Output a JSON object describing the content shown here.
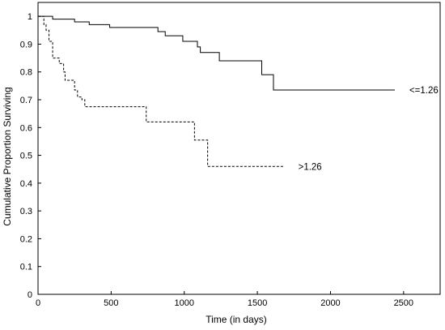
{
  "chart_data": {
    "type": "line",
    "subtype": "step",
    "xlabel": "Time (in days)",
    "ylabel": "Cumulative Proportion Surviving",
    "xlim": [
      0,
      2750
    ],
    "ylim": [
      0,
      1.05
    ],
    "xticks": [
      0,
      500,
      1000,
      1500,
      2000,
      2500
    ],
    "xtick_labels": [
      "0",
      "500",
      "1000",
      "1500",
      "2000",
      "2500"
    ],
    "yticks": [
      0,
      0.1,
      0.2,
      0.3,
      0.4,
      0.5,
      0.6,
      0.7,
      0.8,
      0.9,
      1
    ],
    "ytick_labels": [
      "0",
      "0.1",
      "0.2",
      "0.3",
      "0.4",
      "0.5",
      "0.6",
      "0.7",
      "0.8",
      "0.9",
      "1"
    ],
    "grid": false,
    "legend": "inline labels at series ends",
    "series": [
      {
        "name": "<=1.26",
        "line_style": "solid",
        "color": "#000000",
        "steps": [
          [
            0,
            1.0
          ],
          [
            100,
            0.99
          ],
          [
            250,
            0.98
          ],
          [
            350,
            0.97
          ],
          [
            490,
            0.96
          ],
          [
            820,
            0.945
          ],
          [
            870,
            0.93
          ],
          [
            990,
            0.91
          ],
          [
            1090,
            0.89
          ],
          [
            1110,
            0.87
          ],
          [
            1240,
            0.84
          ],
          [
            1530,
            0.79
          ],
          [
            1610,
            0.735
          ],
          [
            2440,
            0.735
          ]
        ]
      },
      {
        "name": ">1.26",
        "line_style": "dashed",
        "color": "#000000",
        "steps": [
          [
            0,
            1.0
          ],
          [
            40,
            0.97
          ],
          [
            55,
            0.95
          ],
          [
            75,
            0.91
          ],
          [
            100,
            0.85
          ],
          [
            145,
            0.83
          ],
          [
            175,
            0.8
          ],
          [
            185,
            0.77
          ],
          [
            250,
            0.735
          ],
          [
            270,
            0.71
          ],
          [
            300,
            0.7
          ],
          [
            320,
            0.675
          ],
          [
            740,
            0.62
          ],
          [
            1070,
            0.555
          ],
          [
            1160,
            0.46
          ],
          [
            1680,
            0.46
          ]
        ]
      }
    ]
  }
}
